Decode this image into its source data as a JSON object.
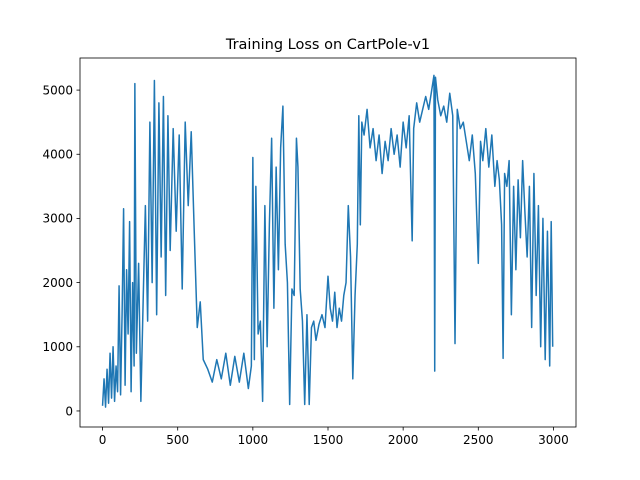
{
  "chart_data": {
    "type": "line",
    "title": "Training Loss on CartPole-v1",
    "xlabel": "",
    "ylabel": "",
    "xlim": [
      -150,
      3150
    ],
    "ylim": [
      -250,
      5500
    ],
    "xticks": [
      0,
      500,
      1000,
      1500,
      2000,
      2500,
      3000
    ],
    "yticks": [
      0,
      1000,
      2000,
      3000,
      4000,
      5000
    ],
    "grid": false,
    "legend": "none",
    "line_color": "#1f77b4",
    "series": [
      {
        "points": [
          [
            0,
            80
          ],
          [
            10,
            500
          ],
          [
            20,
            60
          ],
          [
            30,
            650
          ],
          [
            40,
            120
          ],
          [
            50,
            900
          ],
          [
            60,
            200
          ],
          [
            70,
            1000
          ],
          [
            80,
            150
          ],
          [
            90,
            700
          ],
          [
            100,
            300
          ],
          [
            110,
            1950
          ],
          [
            120,
            250
          ],
          [
            130,
            1500
          ],
          [
            140,
            3150
          ],
          [
            150,
            400
          ],
          [
            160,
            2200
          ],
          [
            170,
            1200
          ],
          [
            180,
            2950
          ],
          [
            190,
            300
          ],
          [
            200,
            2000
          ],
          [
            210,
            700
          ],
          [
            215,
            5100
          ],
          [
            225,
            900
          ],
          [
            240,
            2300
          ],
          [
            255,
            150
          ],
          [
            270,
            1700
          ],
          [
            285,
            3200
          ],
          [
            300,
            1400
          ],
          [
            315,
            4500
          ],
          [
            330,
            2000
          ],
          [
            345,
            5150
          ],
          [
            360,
            1500
          ],
          [
            375,
            4800
          ],
          [
            390,
            2400
          ],
          [
            405,
            4900
          ],
          [
            420,
            1800
          ],
          [
            435,
            4600
          ],
          [
            450,
            2500
          ],
          [
            470,
            4400
          ],
          [
            490,
            2800
          ],
          [
            510,
            4300
          ],
          [
            530,
            1900
          ],
          [
            550,
            4500
          ],
          [
            570,
            3200
          ],
          [
            590,
            4350
          ],
          [
            610,
            2800
          ],
          [
            630,
            1300
          ],
          [
            650,
            1700
          ],
          [
            670,
            800
          ],
          [
            700,
            650
          ],
          [
            730,
            450
          ],
          [
            760,
            800
          ],
          [
            790,
            500
          ],
          [
            820,
            900
          ],
          [
            850,
            400
          ],
          [
            880,
            850
          ],
          [
            910,
            450
          ],
          [
            940,
            900
          ],
          [
            970,
            350
          ],
          [
            990,
            700
          ],
          [
            1000,
            3950
          ],
          [
            1010,
            800
          ],
          [
            1020,
            3500
          ],
          [
            1035,
            1200
          ],
          [
            1050,
            1400
          ],
          [
            1065,
            150
          ],
          [
            1080,
            3200
          ],
          [
            1095,
            1000
          ],
          [
            1110,
            2900
          ],
          [
            1125,
            4250
          ],
          [
            1140,
            1600
          ],
          [
            1155,
            3800
          ],
          [
            1170,
            2200
          ],
          [
            1185,
            4100
          ],
          [
            1200,
            4750
          ],
          [
            1215,
            2600
          ],
          [
            1230,
            2000
          ],
          [
            1245,
            100
          ],
          [
            1260,
            1900
          ],
          [
            1275,
            1800
          ],
          [
            1290,
            4250
          ],
          [
            1300,
            3800
          ],
          [
            1315,
            1900
          ],
          [
            1330,
            1400
          ],
          [
            1345,
            100
          ],
          [
            1360,
            1500
          ],
          [
            1375,
            100
          ],
          [
            1390,
            1300
          ],
          [
            1405,
            1400
          ],
          [
            1420,
            1100
          ],
          [
            1440,
            1350
          ],
          [
            1460,
            1500
          ],
          [
            1480,
            1300
          ],
          [
            1500,
            2100
          ],
          [
            1515,
            1600
          ],
          [
            1530,
            1400
          ],
          [
            1545,
            1850
          ],
          [
            1560,
            1300
          ],
          [
            1575,
            1600
          ],
          [
            1590,
            1400
          ],
          [
            1605,
            1800
          ],
          [
            1620,
            2000
          ],
          [
            1635,
            3200
          ],
          [
            1650,
            2400
          ],
          [
            1665,
            500
          ],
          [
            1680,
            1800
          ],
          [
            1695,
            2600
          ],
          [
            1705,
            4600
          ],
          [
            1715,
            2900
          ],
          [
            1725,
            4500
          ],
          [
            1740,
            4300
          ],
          [
            1760,
            4700
          ],
          [
            1780,
            4100
          ],
          [
            1800,
            4400
          ],
          [
            1820,
            3900
          ],
          [
            1840,
            4300
          ],
          [
            1860,
            3700
          ],
          [
            1880,
            4200
          ],
          [
            1900,
            3900
          ],
          [
            1920,
            4400
          ],
          [
            1940,
            4000
          ],
          [
            1960,
            4300
          ],
          [
            1980,
            3800
          ],
          [
            2000,
            4500
          ],
          [
            2020,
            4100
          ],
          [
            2040,
            4600
          ],
          [
            2060,
            2650
          ],
          [
            2070,
            4400
          ],
          [
            2090,
            4800
          ],
          [
            2110,
            4500
          ],
          [
            2130,
            4700
          ],
          [
            2150,
            4900
          ],
          [
            2170,
            4700
          ],
          [
            2190,
            5000
          ],
          [
            2205,
            5230
          ],
          [
            2210,
            620
          ],
          [
            2215,
            5200
          ],
          [
            2230,
            4850
          ],
          [
            2250,
            4600
          ],
          [
            2270,
            4750
          ],
          [
            2290,
            4500
          ],
          [
            2310,
            4950
          ],
          [
            2330,
            4600
          ],
          [
            2345,
            1050
          ],
          [
            2360,
            4700
          ],
          [
            2380,
            4400
          ],
          [
            2400,
            4500
          ],
          [
            2420,
            4200
          ],
          [
            2440,
            3900
          ],
          [
            2460,
            4300
          ],
          [
            2480,
            3700
          ],
          [
            2500,
            2300
          ],
          [
            2515,
            4200
          ],
          [
            2530,
            3900
          ],
          [
            2550,
            4400
          ],
          [
            2570,
            3800
          ],
          [
            2590,
            4300
          ],
          [
            2610,
            3500
          ],
          [
            2625,
            3900
          ],
          [
            2640,
            3600
          ],
          [
            2655,
            2900
          ],
          [
            2665,
            820
          ],
          [
            2675,
            3700
          ],
          [
            2690,
            3500
          ],
          [
            2705,
            3900
          ],
          [
            2720,
            1500
          ],
          [
            2735,
            3500
          ],
          [
            2750,
            2200
          ],
          [
            2765,
            3600
          ],
          [
            2780,
            2700
          ],
          [
            2795,
            3900
          ],
          [
            2810,
            3100
          ],
          [
            2825,
            2400
          ],
          [
            2840,
            3500
          ],
          [
            2855,
            1300
          ],
          [
            2870,
            3700
          ],
          [
            2885,
            1800
          ],
          [
            2900,
            3200
          ],
          [
            2915,
            1000
          ],
          [
            2930,
            3000
          ],
          [
            2945,
            800
          ],
          [
            2960,
            2800
          ],
          [
            2975,
            700
          ],
          [
            2985,
            2950
          ],
          [
            2995,
            1000
          ]
        ]
      }
    ]
  }
}
